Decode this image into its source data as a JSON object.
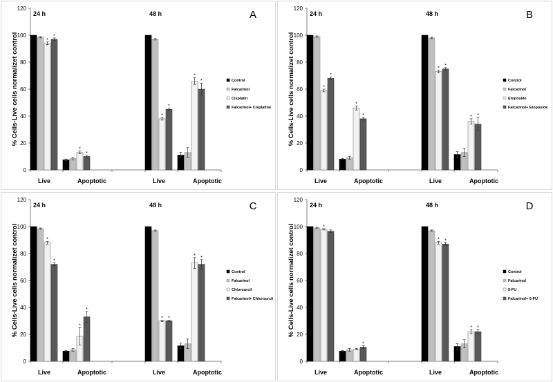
{
  "colors": {
    "control": "#000000",
    "falcarinol": "#bfbfbf",
    "drug": "#f2f2f2",
    "combination": "#595959"
  },
  "chart_data": [
    {
      "type": "bar",
      "panel": "A",
      "ylabel": "% Cells-Live cells normalizet control",
      "ylim": [
        0,
        120
      ],
      "yticks": [
        "0",
        "20",
        "40",
        "60",
        "80",
        "100",
        "120"
      ],
      "time_labels": [
        "24 h",
        "48 h"
      ],
      "categories": [
        "Live",
        "Apoptotic",
        "Live",
        "Apoptotic"
      ],
      "series": [
        {
          "name": "Control",
          "values": [
            100,
            7.5,
            100,
            11
          ],
          "errors": [
            0,
            0.6,
            0,
            2
          ]
        },
        {
          "name": "Falcarinol",
          "values": [
            98.5,
            8.5,
            97,
            13
          ],
          "errors": [
            0.5,
            1,
            0.5,
            3.5
          ]
        },
        {
          "name": "Cisplatin",
          "values": [
            94,
            13,
            38,
            66
          ],
          "errors": [
            1,
            1,
            1,
            2.5
          ]
        },
        {
          "name": "Falcarinol+ Cisplatine",
          "values": [
            97,
            10,
            45,
            60
          ],
          "errors": [
            1,
            0.8,
            1,
            4.5
          ]
        }
      ],
      "stars": [
        [
          0,
          2
        ],
        [
          0,
          3
        ],
        [
          1,
          2
        ],
        [
          1,
          3
        ],
        [
          2,
          2
        ],
        [
          2,
          3
        ],
        [
          3,
          2
        ],
        [
          3,
          3
        ]
      ]
    },
    {
      "type": "bar",
      "panel": "B",
      "ylabel": "% Cells-Live cells normalizet control",
      "ylim": [
        0,
        120
      ],
      "yticks": [
        "0",
        "20",
        "40",
        "60",
        "80",
        "100",
        "120"
      ],
      "time_labels": [
        "24 h",
        "48 h"
      ],
      "categories": [
        "Live",
        "Apoptotic",
        "Live",
        "Apoptotic"
      ],
      "series": [
        {
          "name": "Control",
          "values": [
            100,
            8,
            100,
            11.5
          ],
          "errors": [
            0,
            0.5,
            0,
            2
          ]
        },
        {
          "name": "Falcarinol",
          "values": [
            99,
            9,
            98,
            13
          ],
          "errors": [
            0.5,
            1,
            0.5,
            3
          ]
        },
        {
          "name": "Etoposide",
          "values": [
            59,
            46,
            73,
            36
          ],
          "errors": [
            1,
            1.5,
            1,
            2
          ]
        },
        {
          "name": "Falcarinol+ Etoposide",
          "values": [
            68,
            38,
            75,
            34
          ],
          "errors": [
            1,
            1,
            1,
            5
          ]
        }
      ],
      "stars": [
        [
          0,
          2
        ],
        [
          0,
          3
        ],
        [
          1,
          2
        ],
        [
          1,
          3
        ],
        [
          2,
          2
        ],
        [
          2,
          3
        ],
        [
          3,
          2
        ],
        [
          3,
          3
        ]
      ]
    },
    {
      "type": "bar",
      "panel": "C",
      "ylabel": "% Cells-Live cells normalizet control",
      "ylim": [
        0,
        120
      ],
      "yticks": [
        "0",
        "20",
        "40",
        "60",
        "80",
        "100",
        "120"
      ],
      "time_labels": [
        "24 h",
        "48 h"
      ],
      "categories": [
        "Live",
        "Apoptotic",
        "Live",
        "Apoptotic"
      ],
      "series": [
        {
          "name": "Control",
          "values": [
            100,
            7.5,
            100,
            11.5
          ],
          "errors": [
            0,
            0.5,
            0,
            2
          ]
        },
        {
          "name": "Falcarinol",
          "values": [
            98.5,
            8.5,
            97,
            13
          ],
          "errors": [
            0.5,
            1,
            0.5,
            3.5
          ]
        },
        {
          "name": "Chlorourcil",
          "values": [
            88,
            18.5,
            30,
            73
          ],
          "errors": [
            1,
            6.5,
            0.5,
            4
          ]
        },
        {
          "name": "Falcarinol+ Chlorourcil",
          "values": [
            72,
            33,
            30,
            72
          ],
          "errors": [
            1,
            4,
            0.5,
            3.5
          ]
        }
      ],
      "stars": [
        [
          0,
          2
        ],
        [
          0,
          3
        ],
        [
          1,
          2
        ],
        [
          1,
          3
        ],
        [
          2,
          2
        ],
        [
          2,
          3
        ],
        [
          3,
          2
        ],
        [
          3,
          3
        ]
      ]
    },
    {
      "type": "bar",
      "panel": "D",
      "ylabel": "% Cells-Live cells normalizet control",
      "ylim": [
        0,
        120
      ],
      "yticks": [
        "0",
        "20",
        "40",
        "60",
        "80",
        "100",
        "120"
      ],
      "time_labels": [
        "24 h",
        "48 h"
      ],
      "categories": [
        "Live",
        "Apoptotic",
        "Live",
        "Apoptotic"
      ],
      "series": [
        {
          "name": "Control",
          "values": [
            100,
            7.5,
            100,
            11
          ],
          "errors": [
            0,
            0.5,
            0,
            2
          ]
        },
        {
          "name": "Falcarinol",
          "values": [
            99,
            8.5,
            97,
            13
          ],
          "errors": [
            0.5,
            1,
            0.5,
            3
          ]
        },
        {
          "name": "5-FU",
          "values": [
            98,
            9,
            88,
            22
          ],
          "errors": [
            0.5,
            0.5,
            1,
            1.5
          ]
        },
        {
          "name": "Falcarinol+ 5-FU",
          "values": [
            96.5,
            10.5,
            87,
            22
          ],
          "errors": [
            1,
            1,
            1,
            1.5
          ]
        }
      ],
      "stars": [
        [
          0,
          2
        ],
        [
          1,
          3
        ],
        [
          2,
          2
        ],
        [
          2,
          3
        ],
        [
          3,
          2
        ],
        [
          3,
          3
        ]
      ]
    }
  ]
}
